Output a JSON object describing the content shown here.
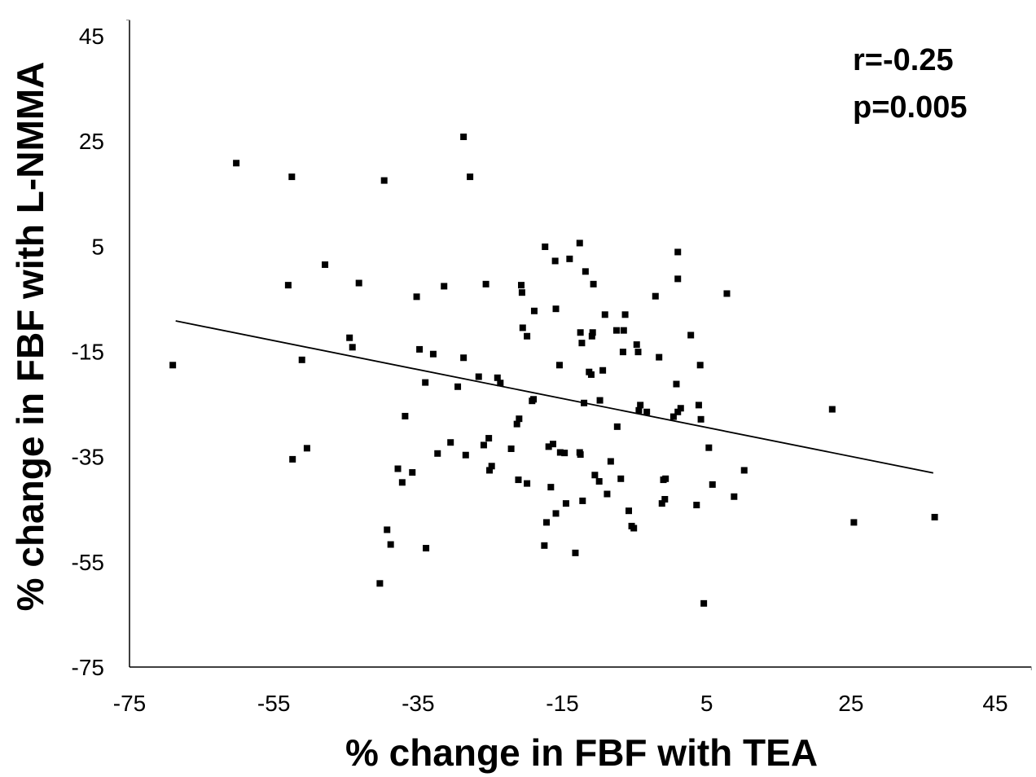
{
  "chart_data": {
    "type": "scatter",
    "title": "",
    "xlabel": "% change in FBF with TEA",
    "ylabel": "% change in FBF with L-NMMA",
    "xlim": [
      -75,
      50
    ],
    "ylim": [
      -75,
      48
    ],
    "x_ticks": [
      -75,
      -55,
      -35,
      -15,
      5,
      25,
      45
    ],
    "y_ticks": [
      -75,
      -55,
      -35,
      -15,
      5,
      25,
      45
    ],
    "x_tick_labels": [
      "-75",
      "-55",
      "-35",
      "-15",
      "5",
      "25",
      "45"
    ],
    "y_tick_labels": [
      "-75",
      "-55",
      "-35",
      "-15",
      "5",
      "25",
      "45"
    ],
    "annotations": [
      "r=-0.25",
      "p=0.005"
    ],
    "trendline": {
      "x": [
        -68.6,
        36.4
      ],
      "y": [
        -9.2,
        -38.1
      ]
    },
    "points": [
      [
        -69,
        -17.6
      ],
      [
        -60.2,
        20.8
      ],
      [
        -52.5,
        18.2
      ],
      [
        -53,
        -2.4
      ],
      [
        -52.4,
        -35.5
      ],
      [
        -51.1,
        -16.6
      ],
      [
        -50.4,
        -33.4
      ],
      [
        -47.9,
        1.5
      ],
      [
        -44.5,
        -12.4
      ],
      [
        -44.1,
        -14.2
      ],
      [
        -43.2,
        -2
      ],
      [
        -40.3,
        -59.1
      ],
      [
        -39.7,
        17.5
      ],
      [
        -39.3,
        -48.9
      ],
      [
        -38.8,
        -51.7
      ],
      [
        -37.8,
        -37.3
      ],
      [
        -37.2,
        -39.9
      ],
      [
        -36.8,
        -27.3
      ],
      [
        -35.8,
        -38
      ],
      [
        -35.2,
        -4.6
      ],
      [
        -34.8,
        -14.6
      ],
      [
        -34,
        -20.9
      ],
      [
        -33.9,
        -52.4
      ],
      [
        -32.9,
        -15.5
      ],
      [
        -32.3,
        -34.4
      ],
      [
        -31.4,
        -2.6
      ],
      [
        -30.5,
        -32.3
      ],
      [
        -29.5,
        -21.7
      ],
      [
        -28.7,
        -16.2
      ],
      [
        -28.7,
        25.8
      ],
      [
        -28.4,
        -34.7
      ],
      [
        -27.8,
        18.2
      ],
      [
        -26.6,
        -19.8
      ],
      [
        -25.9,
        -32.8
      ],
      [
        -25.6,
        -2.2
      ],
      [
        -25.2,
        -31.5
      ],
      [
        -25.1,
        -37.6
      ],
      [
        -24.8,
        -36.8
      ],
      [
        -24,
        -20
      ],
      [
        -23.6,
        -21
      ],
      [
        -22.1,
        -33.5
      ],
      [
        -21.3,
        -28.8
      ],
      [
        -21.1,
        -39.4
      ],
      [
        -21,
        -27.8
      ],
      [
        -20.6,
        -3.8
      ],
      [
        -20.7,
        -2.4
      ],
      [
        -20.5,
        -10.5
      ],
      [
        -19.9,
        -40.1
      ],
      [
        -19.9,
        -12.1
      ],
      [
        -19.2,
        -24.4
      ],
      [
        -19,
        -24.1
      ],
      [
        -18.9,
        -7.3
      ],
      [
        -17.5,
        -51.9
      ],
      [
        -17.4,
        4.9
      ],
      [
        -17.2,
        -47.5
      ],
      [
        -16.9,
        -33.1
      ],
      [
        -16.6,
        -40.8
      ],
      [
        -16.3,
        -32.6
      ],
      [
        -16,
        2.2
      ],
      [
        -15.9,
        -45.8
      ],
      [
        -15.9,
        -6.9
      ],
      [
        -15.4,
        -17.6
      ],
      [
        -15.3,
        -34.2
      ],
      [
        -14.7,
        -34.3
      ],
      [
        -14.5,
        -43.9
      ],
      [
        -14,
        2.6
      ],
      [
        -13.2,
        -53.3
      ],
      [
        -12.6,
        5.6
      ],
      [
        -12.6,
        -34.2
      ],
      [
        -12.5,
        -34.6
      ],
      [
        -12.5,
        -11.4
      ],
      [
        -12.3,
        -13.4
      ],
      [
        -12.2,
        -43.4
      ],
      [
        -12,
        -24.8
      ],
      [
        -11.8,
        0.2
      ],
      [
        -11.3,
        -18.9
      ],
      [
        -11,
        -19.4
      ],
      [
        -10.9,
        -12.1
      ],
      [
        -10.8,
        -11.4
      ],
      [
        -10.7,
        -2.2
      ],
      [
        -10.5,
        -38.5
      ],
      [
        -9.9,
        -39.7
      ],
      [
        -9.8,
        -24.3
      ],
      [
        -9.4,
        -18.6
      ],
      [
        -9.1,
        -8
      ],
      [
        -8.8,
        -42.1
      ],
      [
        -8.3,
        -35.9
      ],
      [
        -7.5,
        -11
      ],
      [
        -7.4,
        -29.3
      ],
      [
        -6.9,
        -39.2
      ],
      [
        -6.6,
        -15.1
      ],
      [
        -6.5,
        -11
      ],
      [
        -6.3,
        -8
      ],
      [
        -5.8,
        -45.3
      ],
      [
        -5.4,
        -48.2
      ],
      [
        -5.1,
        -48.6
      ],
      [
        -4.7,
        -13.7
      ],
      [
        -4.5,
        -15.1
      ],
      [
        -4.4,
        -26.2
      ],
      [
        -4.2,
        -25.2
      ],
      [
        -3.3,
        -26.5
      ],
      [
        -2.1,
        -4.5
      ],
      [
        -1.6,
        -16.1
      ],
      [
        -1.2,
        -43.9
      ],
      [
        -1,
        -39.4
      ],
      [
        -0.7,
        -39.2
      ],
      [
        -0.8,
        -43.1
      ],
      [
        0.4,
        -27.4
      ],
      [
        0.8,
        -21.2
      ],
      [
        1,
        -26.5
      ],
      [
        1,
        -1.2
      ],
      [
        1,
        3.9
      ],
      [
        1.4,
        -25.8
      ],
      [
        2.8,
        -11.9
      ],
      [
        3.6,
        -44.2
      ],
      [
        4.1,
        -17.6
      ],
      [
        3.9,
        -25.2
      ],
      [
        4.2,
        -27.9
      ],
      [
        4.6,
        -62.9
      ],
      [
        5.3,
        -33.3
      ],
      [
        5.8,
        -40.3
      ],
      [
        7.8,
        -4
      ],
      [
        8.8,
        -42.6
      ],
      [
        10.2,
        -37.6
      ],
      [
        22.4,
        -26
      ],
      [
        25.4,
        -47.5
      ],
      [
        36.6,
        -46.5
      ]
    ]
  }
}
